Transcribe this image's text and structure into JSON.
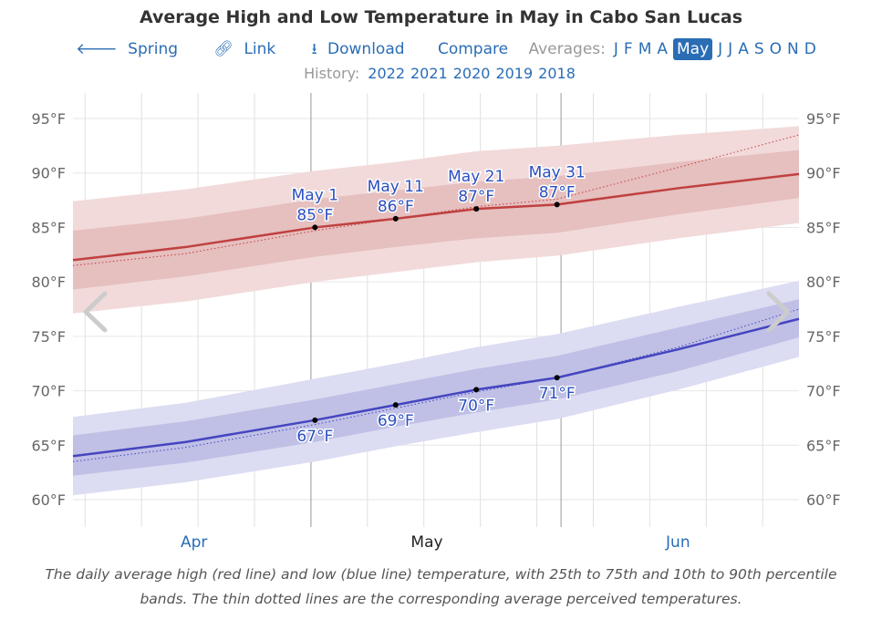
{
  "title": "Average High and Low Temperature in May in Cabo San Lucas",
  "nav": {
    "spring": "Spring",
    "link": "Link",
    "download": "Download",
    "compare": "Compare",
    "averages_label": "Averages:",
    "months": [
      "J",
      "F",
      "M",
      "A",
      "May",
      "J",
      "J",
      "A",
      "S",
      "O",
      "N",
      "D"
    ],
    "selected_month_index": 4
  },
  "history": {
    "label": "History:",
    "years": [
      "2022",
      "2021",
      "2020",
      "2019",
      "2018"
    ]
  },
  "caption": "The daily average high (red line) and low (blue line) temperature, with 25th to 75th and 10th to 90th percentile bands. The thin dotted lines are the corresponding average perceived temperatures.",
  "colors": {
    "high": "#c04040",
    "high_band_inner": "#e6bfbf",
    "high_band_outer": "#f2dada",
    "low": "#4545c0",
    "low_band_inner": "#c0c0e6",
    "low_band_outer": "#dcdcf2",
    "link": "#2a6db5"
  },
  "chart_data": {
    "type": "area",
    "title": "Average High and Low Temperature in May in Cabo San Lucas",
    "x": [
      "Apr 1",
      "Apr 15",
      "May 1",
      "May 11",
      "May 21",
      "May 31",
      "Jun 15",
      "Jun 30"
    ],
    "x_tick_labels": [
      "Apr",
      "May",
      "Jun"
    ],
    "y_tick_labels": [
      "95°F",
      "90°F",
      "85°F",
      "80°F",
      "75°F",
      "70°F",
      "65°F",
      "60°F"
    ],
    "ylim": [
      58,
      97
    ],
    "y_unit": "°F",
    "grid": true,
    "high": {
      "avg": [
        82.0,
        83.2,
        85.0,
        85.8,
        86.7,
        87.1,
        88.6,
        89.9
      ],
      "p25": [
        79.3,
        80.5,
        82.3,
        83.2,
        84.0,
        84.5,
        86.2,
        87.7
      ],
      "p75": [
        84.7,
        85.8,
        87.6,
        88.4,
        89.2,
        89.7,
        91.0,
        92.1
      ],
      "p10": [
        77.1,
        78.2,
        80.0,
        80.9,
        81.8,
        82.4,
        84.0,
        85.4
      ],
      "p90": [
        87.4,
        88.5,
        90.2,
        91.0,
        92.0,
        92.5,
        93.5,
        94.3
      ],
      "perceived": [
        81.5,
        82.6,
        84.7,
        85.8,
        86.9,
        87.6,
        90.5,
        93.5
      ]
    },
    "low": {
      "avg": [
        64.0,
        65.3,
        67.3,
        68.7,
        70.1,
        71.2,
        73.8,
        76.6
      ],
      "p25": [
        62.2,
        63.4,
        65.3,
        66.7,
        68.0,
        69.2,
        71.8,
        74.9
      ],
      "p75": [
        65.9,
        67.2,
        69.2,
        70.6,
        72.0,
        73.2,
        75.8,
        78.4
      ],
      "p10": [
        60.4,
        61.6,
        63.5,
        64.9,
        66.2,
        67.4,
        70.1,
        73.1
      ],
      "p90": [
        67.6,
        68.9,
        71.1,
        72.5,
        74.0,
        75.2,
        77.7,
        80.1
      ],
      "perceived": [
        63.5,
        64.8,
        66.9,
        68.4,
        69.9,
        71.2,
        74.0,
        77.5
      ]
    },
    "annotations_high": [
      {
        "date": "May 1",
        "label": "May 1",
        "value": "85°F",
        "y": 85.0
      },
      {
        "date": "May 11",
        "label": "May 11",
        "value": "86°F",
        "y": 85.8
      },
      {
        "date": "May 21",
        "label": "May 21",
        "value": "87°F",
        "y": 86.7
      },
      {
        "date": "May 31",
        "label": "May 31",
        "value": "87°F",
        "y": 87.1
      }
    ],
    "annotations_low": [
      {
        "date": "May 1",
        "value": "67°F",
        "y": 67.3
      },
      {
        "date": "May 11",
        "value": "69°F",
        "y": 68.7
      },
      {
        "date": "May 21",
        "value": "70°F",
        "y": 70.1
      },
      {
        "date": "May 31",
        "value": "71°F",
        "y": 71.2
      }
    ]
  }
}
